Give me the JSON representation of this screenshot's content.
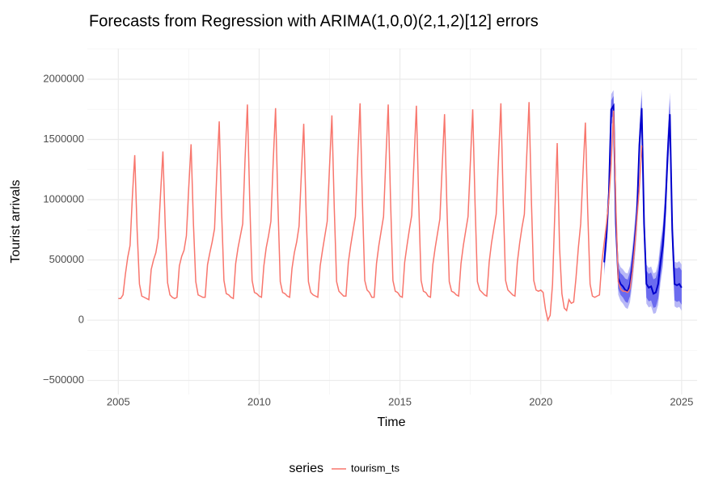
{
  "chart_data": {
    "type": "line",
    "title": "Forecasts from Regression with ARIMA(1,0,0)(2,1,2)[12] errors",
    "xlabel": "Time",
    "ylabel": "Tourist arrivals",
    "xlim": [
      2003.9,
      2025.55
    ],
    "ylim": [
      -617000,
      2255000
    ],
    "xticks": [
      2005,
      2010,
      2015,
      2020,
      2025
    ],
    "yticks": [
      {
        "value": -500000,
        "label": "−500000"
      },
      0,
      500000,
      1000000,
      1500000,
      2000000
    ],
    "minor_xticks": [
      2007.5,
      2012.5,
      2017.5,
      2022.5
    ],
    "minor_yticks": [
      -250000,
      250000,
      750000,
      1250000,
      1750000,
      2250000
    ],
    "grid": true,
    "legend_title": "series",
    "legend": "bottom",
    "series": [
      {
        "name": "tourism_ts",
        "color": "#F8766D",
        "x": [
          2005,
          2005.083,
          2005.167,
          2005.25,
          2005.333,
          2005.417,
          2005.5,
          2005.583,
          2005.667,
          2005.75,
          2005.833,
          2005.917,
          2006,
          2006.083,
          2006.167,
          2006.25,
          2006.333,
          2006.417,
          2006.5,
          2006.583,
          2006.667,
          2006.75,
          2006.833,
          2006.917,
          2007,
          2007.083,
          2007.167,
          2007.25,
          2007.333,
          2007.417,
          2007.5,
          2007.583,
          2007.667,
          2007.75,
          2007.833,
          2007.917,
          2008,
          2008.083,
          2008.167,
          2008.25,
          2008.333,
          2008.417,
          2008.5,
          2008.583,
          2008.667,
          2008.75,
          2008.833,
          2008.917,
          2009,
          2009.083,
          2009.167,
          2009.25,
          2009.333,
          2009.417,
          2009.5,
          2009.583,
          2009.667,
          2009.75,
          2009.833,
          2009.917,
          2010,
          2010.083,
          2010.167,
          2010.25,
          2010.333,
          2010.417,
          2010.5,
          2010.583,
          2010.667,
          2010.75,
          2010.833,
          2010.917,
          2011,
          2011.083,
          2011.167,
          2011.25,
          2011.333,
          2011.417,
          2011.5,
          2011.583,
          2011.667,
          2011.75,
          2011.833,
          2011.917,
          2012,
          2012.083,
          2012.167,
          2012.25,
          2012.333,
          2012.417,
          2012.5,
          2012.583,
          2012.667,
          2012.75,
          2012.833,
          2012.917,
          2013,
          2013.083,
          2013.167,
          2013.25,
          2013.333,
          2013.417,
          2013.5,
          2013.583,
          2013.667,
          2013.75,
          2013.833,
          2013.917,
          2014,
          2014.083,
          2014.167,
          2014.25,
          2014.333,
          2014.417,
          2014.5,
          2014.583,
          2014.667,
          2014.75,
          2014.833,
          2014.917,
          2015,
          2015.083,
          2015.167,
          2015.25,
          2015.333,
          2015.417,
          2015.5,
          2015.583,
          2015.667,
          2015.75,
          2015.833,
          2015.917,
          2016,
          2016.083,
          2016.167,
          2016.25,
          2016.333,
          2016.417,
          2016.5,
          2016.583,
          2016.667,
          2016.75,
          2016.833,
          2016.917,
          2017,
          2017.083,
          2017.167,
          2017.25,
          2017.333,
          2017.417,
          2017.5,
          2017.583,
          2017.667,
          2017.75,
          2017.833,
          2017.917,
          2018,
          2018.083,
          2018.167,
          2018.25,
          2018.333,
          2018.417,
          2018.5,
          2018.583,
          2018.667,
          2018.75,
          2018.833,
          2018.917,
          2019,
          2019.083,
          2019.167,
          2019.25,
          2019.333,
          2019.417,
          2019.5,
          2019.583,
          2019.667,
          2019.75,
          2019.833,
          2019.917,
          2020,
          2020.083,
          2020.167,
          2020.25,
          2020.333,
          2020.417,
          2020.5,
          2020.583,
          2020.667,
          2020.75,
          2020.833,
          2020.917,
          2021,
          2021.083,
          2021.167,
          2021.25,
          2021.333,
          2021.417,
          2021.5,
          2021.583,
          2021.667,
          2021.75,
          2021.833,
          2021.917,
          2022,
          2022.083,
          2022.167,
          2022.25,
          2022.333,
          2022.417,
          2022.5,
          2022.583,
          2022.667,
          2022.75,
          2022.833,
          2022.917,
          2023,
          2023.083,
          2023.167,
          2023.25,
          2023.333,
          2023.417,
          2023.5,
          2023.583
        ],
        "values": [
          180000,
          180000,
          210000,
          380000,
          520000,
          620000,
          1030000,
          1370000,
          750000,
          300000,
          200000,
          190000,
          180000,
          170000,
          420000,
          500000,
          560000,
          680000,
          1050000,
          1400000,
          770000,
          310000,
          210000,
          190000,
          180000,
          190000,
          450000,
          530000,
          580000,
          700000,
          1100000,
          1460000,
          800000,
          320000,
          210000,
          200000,
          190000,
          190000,
          460000,
          560000,
          650000,
          760000,
          1240000,
          1650000,
          900000,
          330000,
          220000,
          210000,
          190000,
          180000,
          470000,
          600000,
          700000,
          800000,
          1340000,
          1790000,
          980000,
          330000,
          230000,
          220000,
          200000,
          190000,
          450000,
          600000,
          700000,
          820000,
          1320000,
          1760000,
          960000,
          320000,
          230000,
          220000,
          200000,
          190000,
          430000,
          560000,
          650000,
          780000,
          1220000,
          1630000,
          900000,
          320000,
          230000,
          210000,
          200000,
          190000,
          450000,
          580000,
          700000,
          820000,
          1280000,
          1700000,
          930000,
          320000,
          240000,
          220000,
          200000,
          200000,
          480000,
          620000,
          740000,
          860000,
          1350000,
          1800000,
          980000,
          330000,
          250000,
          230000,
          190000,
          190000,
          470000,
          620000,
          740000,
          860000,
          1340000,
          1790000,
          980000,
          330000,
          240000,
          230000,
          200000,
          190000,
          480000,
          620000,
          750000,
          870000,
          1330000,
          1780000,
          970000,
          330000,
          240000,
          230000,
          200000,
          190000,
          460000,
          600000,
          720000,
          840000,
          1280000,
          1710000,
          940000,
          320000,
          240000,
          230000,
          210000,
          200000,
          470000,
          620000,
          740000,
          860000,
          1310000,
          1750000,
          960000,
          320000,
          250000,
          230000,
          210000,
          200000,
          480000,
          640000,
          760000,
          880000,
          1350000,
          1800000,
          980000,
          330000,
          250000,
          230000,
          210000,
          200000,
          480000,
          640000,
          770000,
          880000,
          1360000,
          1810000,
          990000,
          330000,
          250000,
          240000,
          250000,
          230000,
          90000,
          0,
          40000,
          300000,
          900000,
          1470000,
          600000,
          220000,
          100000,
          80000,
          170000,
          140000,
          150000,
          350000,
          600000,
          800000,
          1230000,
          1640000,
          900000,
          300000,
          200000,
          190000,
          200000,
          210000,
          480000,
          640000,
          800000,
          1000000,
          1300000,
          1740000,
          950000,
          320000,
          260000,
          240000,
          240000,
          230000,
          260000,
          400000,
          600000,
          850000,
          1100000,
          1450000
        ]
      }
    ],
    "forecast": {
      "color": "#0000CC",
      "band80_color": "#6b6bef",
      "band95_color": "#b8b8f6",
      "x": [
        2022.25,
        2022.333,
        2022.417,
        2022.5,
        2022.583,
        2022.667,
        2022.75,
        2022.833,
        2022.917,
        2023,
        2023.083,
        2023.167,
        2023.25,
        2023.333,
        2023.417,
        2023.5,
        2023.583,
        2023.667,
        2023.75,
        2023.833,
        2023.917,
        2024,
        2024.083,
        2024.167,
        2024.25,
        2024.333,
        2024.417,
        2024.5,
        2024.583,
        2024.667,
        2024.75,
        2024.833,
        2024.917,
        2025
      ],
      "values": [
        480000,
        700000,
        1050000,
        1750000,
        1780000,
        800000,
        350000,
        300000,
        280000,
        250000,
        240000,
        300000,
        450000,
        650000,
        900000,
        1450000,
        1760000,
        800000,
        300000,
        270000,
        280000,
        220000,
        230000,
        300000,
        480000,
        620000,
        900000,
        1350000,
        1710000,
        750000,
        300000,
        290000,
        300000,
        270000
      ],
      "lo80": [
        420000,
        635000,
        980000,
        1675000,
        1700000,
        715000,
        262000,
        210000,
        188000,
        155000,
        143000,
        200000,
        350000,
        548000,
        796000,
        1344000,
        1652000,
        690000,
        188000,
        156000,
        164000,
        102000,
        110000,
        178000,
        356000,
        494000,
        772000,
        1220000,
        1578000,
        616000,
        164000,
        152000,
        160000,
        128000
      ],
      "hi80": [
        540000,
        765000,
        1120000,
        1825000,
        1860000,
        885000,
        438000,
        390000,
        372000,
        345000,
        337000,
        400000,
        550000,
        752000,
        1004000,
        1556000,
        1868000,
        910000,
        412000,
        384000,
        396000,
        338000,
        350000,
        422000,
        604000,
        746000,
        1028000,
        1480000,
        1842000,
        884000,
        436000,
        428000,
        440000,
        412000
      ],
      "lo95": [
        370000,
        585000,
        930000,
        1625000,
        1650000,
        665000,
        212000,
        160000,
        138000,
        105000,
        93000,
        150000,
        300000,
        498000,
        746000,
        1294000,
        1602000,
        640000,
        138000,
        106000,
        114000,
        52000,
        60000,
        128000,
        306000,
        444000,
        722000,
        1170000,
        1528000,
        566000,
        114000,
        102000,
        110000,
        78000
      ],
      "hi95": [
        590000,
        815000,
        1170000,
        1875000,
        1910000,
        935000,
        488000,
        440000,
        422000,
        395000,
        387000,
        450000,
        600000,
        802000,
        1054000,
        1606000,
        1918000,
        960000,
        462000,
        434000,
        446000,
        388000,
        400000,
        472000,
        654000,
        796000,
        1078000,
        1530000,
        1892000,
        934000,
        486000,
        478000,
        490000,
        462000
      ]
    }
  }
}
